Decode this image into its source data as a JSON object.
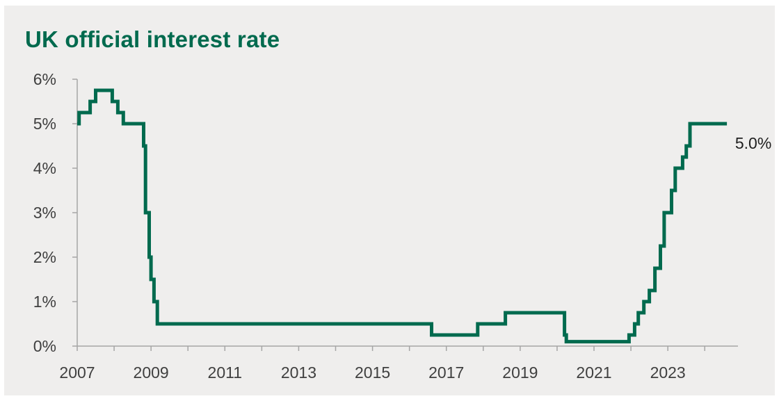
{
  "colors": {
    "line": "#006a4e",
    "title": "#006a4e",
    "axis": "#a5a5a5",
    "text": "#3f3f3f",
    "background": "#efeeed"
  },
  "chart_data": {
    "type": "line",
    "step": true,
    "title": "UK official interest rate",
    "xlabel": "",
    "ylabel": "",
    "xlim": [
      2007.0,
      2024.9
    ],
    "ylim": [
      0,
      6
    ],
    "x_ticks": [
      2007,
      2009,
      2011,
      2013,
      2015,
      2017,
      2019,
      2021,
      2023
    ],
    "x_tick_labels": [
      "2007",
      "2009",
      "2011",
      "2013",
      "2015",
      "2017",
      "2019",
      "2021",
      "2023"
    ],
    "y_ticks": [
      0,
      1,
      2,
      3,
      4,
      5,
      6
    ],
    "y_tick_labels": [
      "0%",
      "1%",
      "2%",
      "3%",
      "4%",
      "5%",
      "6%"
    ],
    "grid": false,
    "legend": "none",
    "end_label": "5.0%",
    "series": [
      {
        "x": [
          2007.0,
          2007.05,
          2007.35,
          2007.5,
          2007.95,
          2008.1,
          2008.25,
          2008.8,
          2008.85,
          2008.95,
          2009.0,
          2009.08,
          2009.17,
          2016.6,
          2017.85,
          2018.6,
          2020.2,
          2020.25,
          2021.95,
          2022.1,
          2022.2,
          2022.35,
          2022.5,
          2022.65,
          2022.8,
          2022.9,
          2023.1,
          2023.2,
          2023.4,
          2023.5,
          2023.6,
          2024.6
        ],
        "y": [
          5.0,
          5.25,
          5.5,
          5.75,
          5.5,
          5.25,
          5.0,
          4.5,
          3.0,
          2.0,
          1.5,
          1.0,
          0.5,
          0.25,
          0.5,
          0.75,
          0.25,
          0.1,
          0.25,
          0.5,
          0.75,
          1.0,
          1.25,
          1.75,
          2.25,
          3.0,
          3.5,
          4.0,
          4.25,
          4.5,
          5.0,
          5.0
        ]
      }
    ]
  }
}
